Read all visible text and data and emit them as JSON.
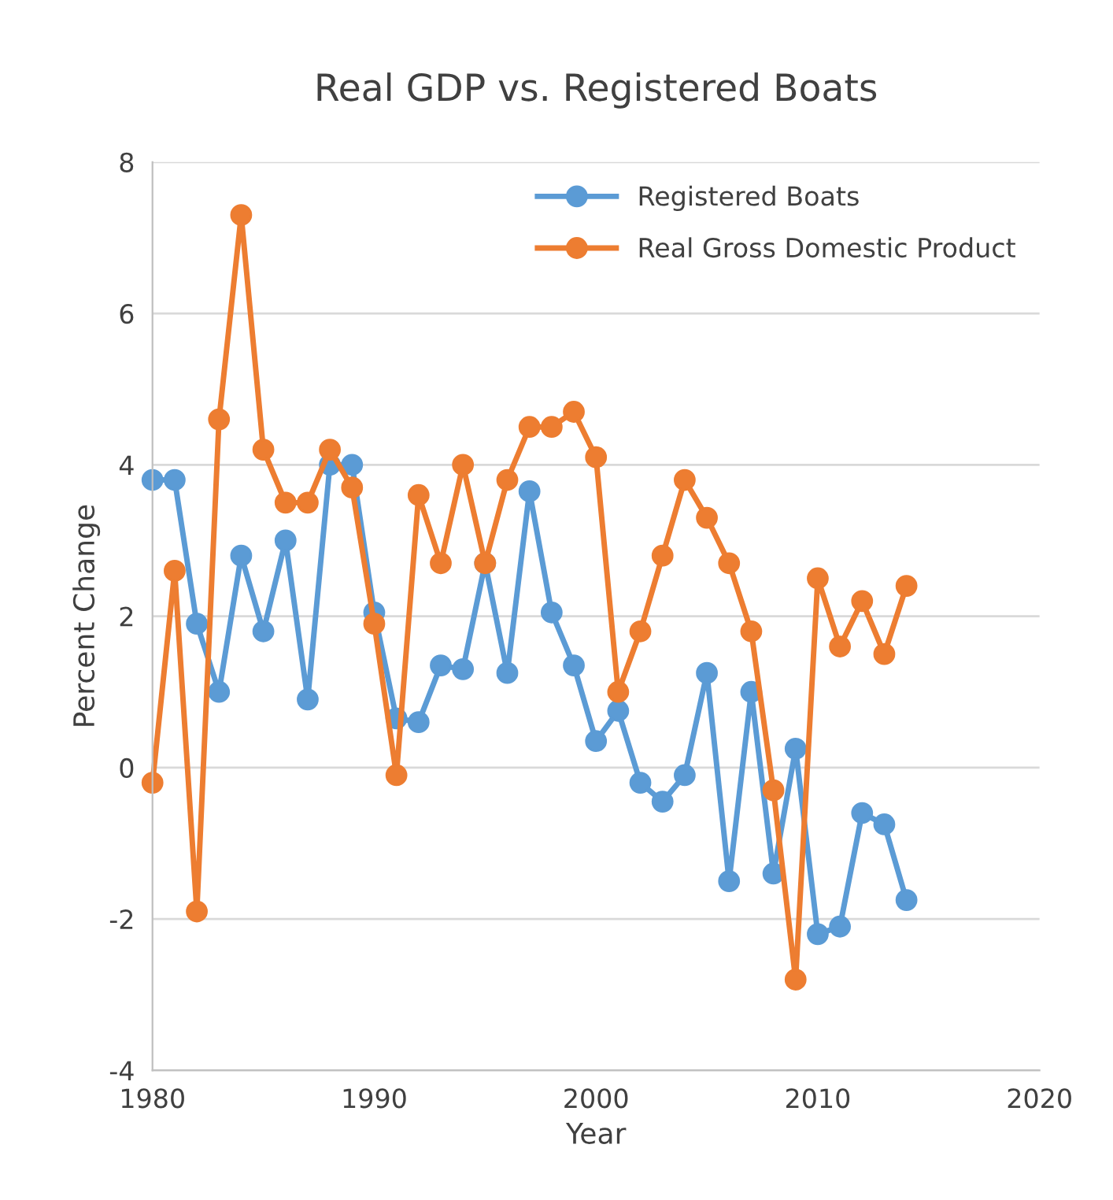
{
  "chart_data": {
    "type": "line",
    "title": "Real GDP vs. Registered Boats",
    "xlabel": "Year",
    "ylabel": "Percent Change",
    "x": [
      1980,
      1981,
      1982,
      1983,
      1984,
      1985,
      1986,
      1987,
      1988,
      1989,
      1990,
      1991,
      1992,
      1993,
      1994,
      1995,
      1996,
      1997,
      1998,
      1999,
      2000,
      2001,
      2002,
      2003,
      2004,
      2005,
      2006,
      2007,
      2008,
      2009,
      2010,
      2011,
      2012,
      2013,
      2014
    ],
    "series": [
      {
        "name": "Registered Boats",
        "color": "#5b9bd5",
        "values": [
          3.8,
          3.8,
          1.9,
          1.0,
          2.8,
          1.8,
          3.0,
          0.9,
          4.0,
          4.0,
          2.05,
          0.65,
          0.6,
          1.35,
          1.3,
          2.7,
          1.25,
          3.65,
          2.05,
          1.35,
          0.35,
          0.75,
          -0.2,
          -0.45,
          -0.1,
          1.25,
          -1.5,
          1.0,
          -1.4,
          0.25,
          -2.2,
          -2.1,
          -0.6,
          -0.75,
          -1.75
        ]
      },
      {
        "name": "Real Gross Domestic Product",
        "color": "#ed7d31",
        "values": [
          -0.2,
          2.6,
          -1.9,
          4.6,
          7.3,
          4.2,
          3.5,
          3.5,
          4.2,
          3.7,
          1.9,
          -0.1,
          3.6,
          2.7,
          4.0,
          2.7,
          3.8,
          4.5,
          4.5,
          4.7,
          4.1,
          1.0,
          1.8,
          2.8,
          3.8,
          3.3,
          2.7,
          1.8,
          -0.3,
          -2.8,
          2.5,
          1.6,
          2.2,
          1.5,
          2.4
        ]
      }
    ],
    "xlim": [
      1980,
      2020
    ],
    "xticks": [
      1980,
      1990,
      2000,
      2010,
      2020
    ],
    "ylim": [
      -4,
      8
    ],
    "yticks": [
      -4,
      -2,
      0,
      2,
      4,
      6,
      8
    ],
    "grid": "y",
    "legend": "top right",
    "marker": "circle",
    "line_style": "solid"
  }
}
